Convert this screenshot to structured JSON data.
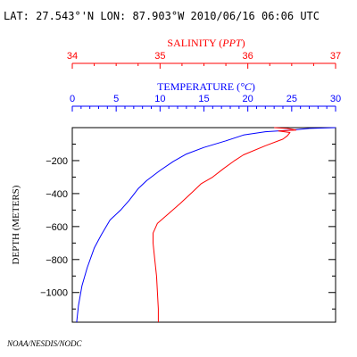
{
  "header": {
    "title": "LAT: 27.543°'N LON: 87.903°W 2010/06/16 06:06 UTC"
  },
  "footer": {
    "credit": "NOAA/NESDIS/NODC"
  },
  "colors": {
    "salinity": "#ff0000",
    "temperature": "#0000ff",
    "frame": "#000000"
  },
  "chart_data": {
    "type": "line",
    "title": "LAT: 27.543°'N LON: 87.903°W 2010/06/16 06:06 UTC",
    "ylabel": "DEPTH (METERS)",
    "ylim": [
      0,
      -1180
    ],
    "yticks": [
      -200,
      -400,
      -600,
      -800,
      -1000
    ],
    "grid": false,
    "axes": {
      "salinity": {
        "label_prefix": "SALINITY (",
        "label_unit": "PPT",
        "label_suffix": ")",
        "range": [
          34,
          37
        ],
        "ticks": [
          34,
          35,
          36,
          37
        ],
        "color": "#ff0000"
      },
      "temperature": {
        "label_prefix": "TEMPERATURE (",
        "label_unit": "°C",
        "label_suffix": ")",
        "range": [
          0,
          30
        ],
        "ticks": [
          0,
          5,
          10,
          15,
          20,
          25,
          30
        ],
        "color": "#0000ff"
      }
    },
    "series": [
      {
        "axis": "temperature",
        "color": "#0000ff",
        "points": [
          [
            30.0,
            0
          ],
          [
            27.0,
            -5
          ],
          [
            25.0,
            -15
          ],
          [
            22.0,
            -25
          ],
          [
            19.5,
            -45
          ],
          [
            17.5,
            -80
          ],
          [
            15.0,
            -120
          ],
          [
            13.0,
            -160
          ],
          [
            11.5,
            -205
          ],
          [
            10.0,
            -260
          ],
          [
            8.5,
            -320
          ],
          [
            7.5,
            -370
          ],
          [
            6.5,
            -440
          ],
          [
            5.5,
            -500
          ],
          [
            4.3,
            -560
          ],
          [
            3.3,
            -650
          ],
          [
            2.5,
            -730
          ],
          [
            1.7,
            -850
          ],
          [
            1.1,
            -960
          ],
          [
            0.7,
            -1080
          ],
          [
            0.5,
            -1180
          ]
        ]
      },
      {
        "axis": "salinity",
        "color": "#ff0000",
        "points": [
          [
            36.3,
            0
          ],
          [
            36.45,
            -5
          ],
          [
            36.55,
            -15
          ],
          [
            36.35,
            -20
          ],
          [
            36.48,
            -30
          ],
          [
            36.45,
            -50
          ],
          [
            36.4,
            -70
          ],
          [
            36.2,
            -110
          ],
          [
            35.95,
            -165
          ],
          [
            35.85,
            -200
          ],
          [
            35.72,
            -250
          ],
          [
            35.6,
            -300
          ],
          [
            35.47,
            -340
          ],
          [
            35.37,
            -390
          ],
          [
            35.23,
            -460
          ],
          [
            35.1,
            -520
          ],
          [
            34.97,
            -580
          ],
          [
            34.92,
            -640
          ],
          [
            34.92,
            -700
          ],
          [
            34.94,
            -800
          ],
          [
            34.96,
            -900
          ],
          [
            34.97,
            -1000
          ],
          [
            34.98,
            -1100
          ],
          [
            34.98,
            -1180
          ]
        ]
      }
    ]
  }
}
